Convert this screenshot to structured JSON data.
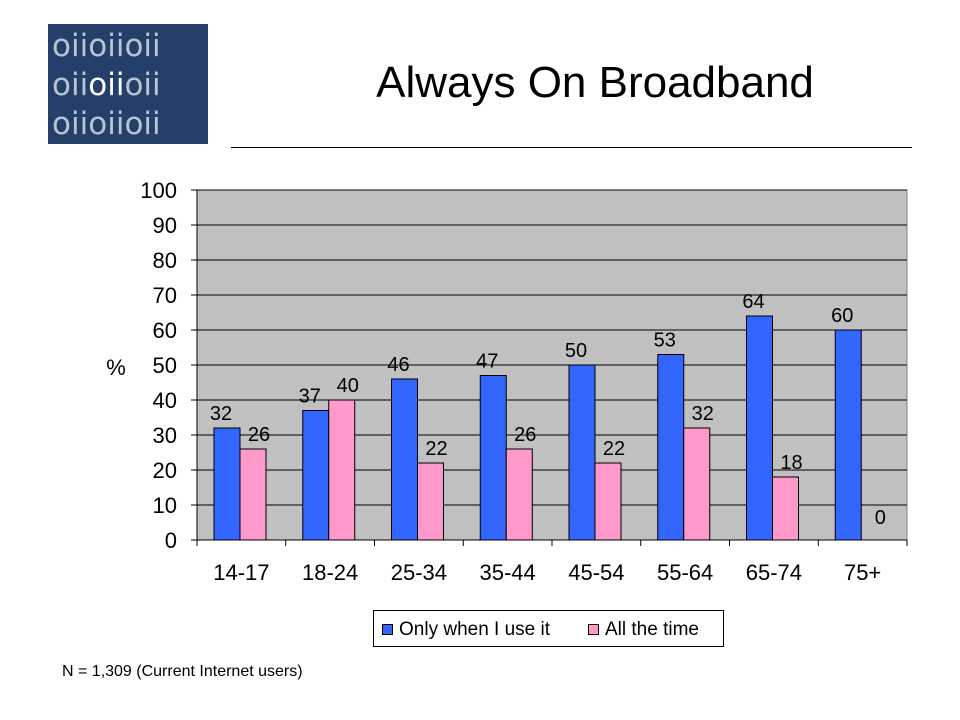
{
  "logo": {
    "rows": [
      "oiioiioii",
      "oiioiioii",
      "oiioiioii"
    ],
    "bg_color": "#233f6a",
    "text_color": "#b9c3d2",
    "highlight_color": "#ffffff"
  },
  "slide": {
    "title": "Always On Broadband",
    "footnote": "N = 1,309 (Current Internet users)"
  },
  "chart_data": {
    "type": "bar",
    "title": "",
    "xlabel": "",
    "ylabel": "%",
    "ylim": [
      0,
      100
    ],
    "yticks": [
      0,
      10,
      20,
      30,
      40,
      50,
      60,
      70,
      80,
      90,
      100
    ],
    "grid": true,
    "legend_position": "bottom",
    "plot_background": "#c0c0c0",
    "categories": [
      "14-17",
      "18-24",
      "25-34",
      "35-44",
      "45-54",
      "55-64",
      "65-74",
      "75+"
    ],
    "series": [
      {
        "name": "Only when I use it",
        "color": "#3366ff",
        "values": [
          32,
          37,
          46,
          47,
          50,
          53,
          64,
          60
        ]
      },
      {
        "name": "All the time",
        "color": "#ff99cc",
        "values": [
          26,
          40,
          22,
          26,
          22,
          32,
          18,
          0
        ]
      }
    ]
  }
}
